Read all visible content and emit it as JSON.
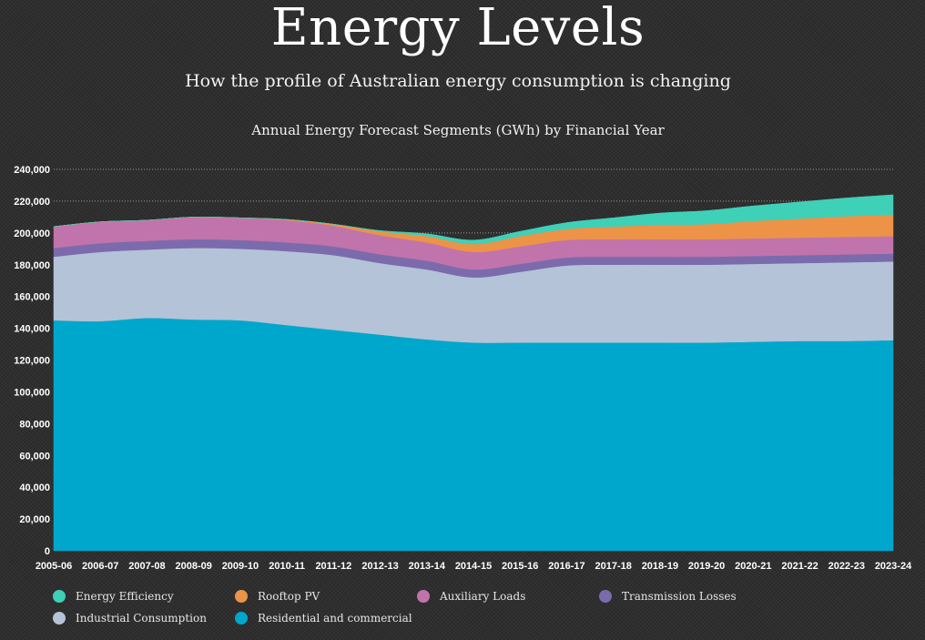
{
  "header": {
    "title": "Energy Levels",
    "subtitle": "How the profile of Australian energy consumption is changing"
  },
  "chart_data": {
    "type": "area",
    "stacked": true,
    "title": "Annual Energy Forecast Segments (GWh) by Financial Year",
    "xlabel": "",
    "ylabel": "",
    "ylim": [
      0,
      240000
    ],
    "y_ticks": [
      0,
      20000,
      40000,
      60000,
      80000,
      100000,
      120000,
      140000,
      160000,
      180000,
      200000,
      220000,
      240000
    ],
    "y_tick_labels": [
      "0",
      "20,000",
      "40,000",
      "60,000",
      "80,000",
      "100,000",
      "120,000",
      "140,000",
      "160,000",
      "180,000",
      "200,000",
      "220,000",
      "240,000"
    ],
    "grid": "horizontal dotted",
    "legend_position": "bottom",
    "categories": [
      "2005-06",
      "2006-07",
      "2007-08",
      "2008-09",
      "2009-10",
      "2010-11",
      "2011-12",
      "2012-13",
      "2013-14",
      "2014-15",
      "2015-16",
      "2016-17",
      "2017-18",
      "2018-19",
      "2019-20",
      "2020-21",
      "2021-22",
      "2022-23",
      "2023-24"
    ],
    "series": [
      {
        "name": "Residential and commercial",
        "color": "#00a7cc",
        "values": [
          145000,
          144500,
          146500,
          145500,
          145000,
          142000,
          139000,
          136000,
          133000,
          131000,
          131000,
          131000,
          131000,
          131000,
          131000,
          131500,
          132000,
          132000,
          132500
        ]
      },
      {
        "name": "Industrial Consumption",
        "color": "#b4c3d7",
        "values": [
          40000,
          43500,
          43000,
          45000,
          45000,
          46500,
          47000,
          45000,
          44000,
          41000,
          44500,
          48500,
          49000,
          49000,
          49000,
          49000,
          49000,
          49500,
          49500
        ]
      },
      {
        "name": "Transmission Losses",
        "color": "#7b6bad",
        "values": [
          5500,
          5500,
          5500,
          5500,
          5500,
          5500,
          5500,
          5500,
          5500,
          5000,
          5000,
          5000,
          5000,
          5000,
          5000,
          5000,
          5000,
          5000,
          5000
        ]
      },
      {
        "name": "Auxiliary Loads",
        "color": "#c174ab",
        "values": [
          13500,
          13500,
          13000,
          14000,
          14000,
          14000,
          13000,
          12000,
          11500,
          11000,
          11000,
          11000,
          11000,
          11000,
          11000,
          11000,
          11000,
          11000,
          11000
        ]
      },
      {
        "name": "Rooftop PV",
        "color": "#ec9348",
        "values": [
          0,
          0,
          0,
          0,
          0,
          500,
          1000,
          2500,
          4000,
          5000,
          6500,
          7000,
          8000,
          9000,
          9500,
          11000,
          12000,
          13000,
          13500
        ]
      },
      {
        "name": "Energy Efficiency",
        "color": "#3fd0b8",
        "values": [
          0,
          0,
          0,
          0,
          0,
          0,
          0,
          500,
          1500,
          2500,
          3000,
          4000,
          5500,
          7500,
          8500,
          9500,
          10500,
          11500,
          12500
        ]
      }
    ]
  }
}
